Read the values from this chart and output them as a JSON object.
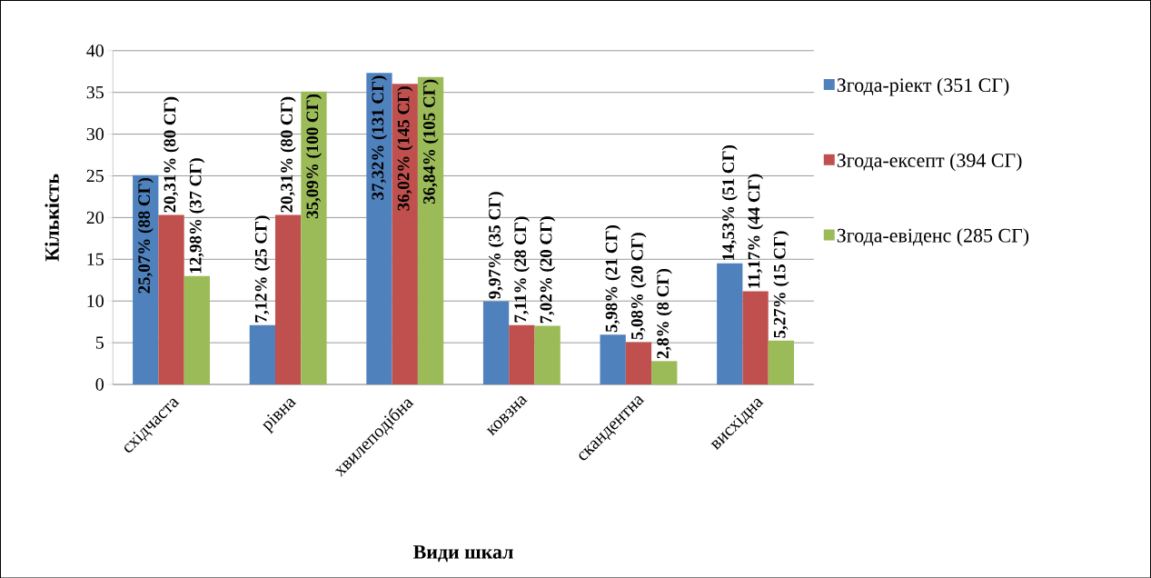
{
  "chart_data": {
    "type": "bar",
    "xlabel": "Види шкал",
    "ylabel": "Кількість",
    "categories": [
      "східчаста",
      "рівна",
      "хвилеподібна",
      "ковзна",
      "скандентна",
      "висхідна"
    ],
    "series": [
      {
        "name": "Згода-ріект (351 СГ)",
        "color": "#4f81bd",
        "values": [
          25.07,
          7.12,
          37.32,
          9.97,
          5.98,
          14.53
        ],
        "value_labels": [
          "25,07% (88 СГ)",
          "7,12% (25 СГ)",
          "37,32% (131 СГ)",
          "9,97% (35 СГ)",
          "5,98% (21 СГ)",
          "14,53% (51 СГ)"
        ]
      },
      {
        "name": "Згода-ексепт (394 СГ)",
        "color": "#c0504d",
        "values": [
          20.31,
          20.31,
          36.02,
          7.11,
          5.08,
          11.17
        ],
        "value_labels": [
          "20,31% (80 СГ)",
          "20,31% (80 СГ)",
          "36,02% (145 СГ)",
          "7,11% (28 СГ)",
          "5,08% (20 СГ)",
          "11,17% (44 СГ)"
        ]
      },
      {
        "name": "Згода-евіденс (285 СГ)",
        "color": "#9bbb59",
        "values": [
          12.98,
          35.09,
          36.84,
          7.02,
          2.8,
          5.27
        ],
        "value_labels": [
          "12,98% (37 СГ)",
          "35,09% (100 СГ)",
          "36,84% (105 СГ)",
          "7,02% (20 СГ)",
          "2,8% (8 СГ)",
          "5,27% (15 СГ)"
        ]
      }
    ],
    "ylim": [
      0,
      40
    ],
    "yticks": [
      0,
      5,
      10,
      15,
      20,
      25,
      30,
      35,
      40
    ],
    "grid": "y",
    "legend": "right"
  }
}
